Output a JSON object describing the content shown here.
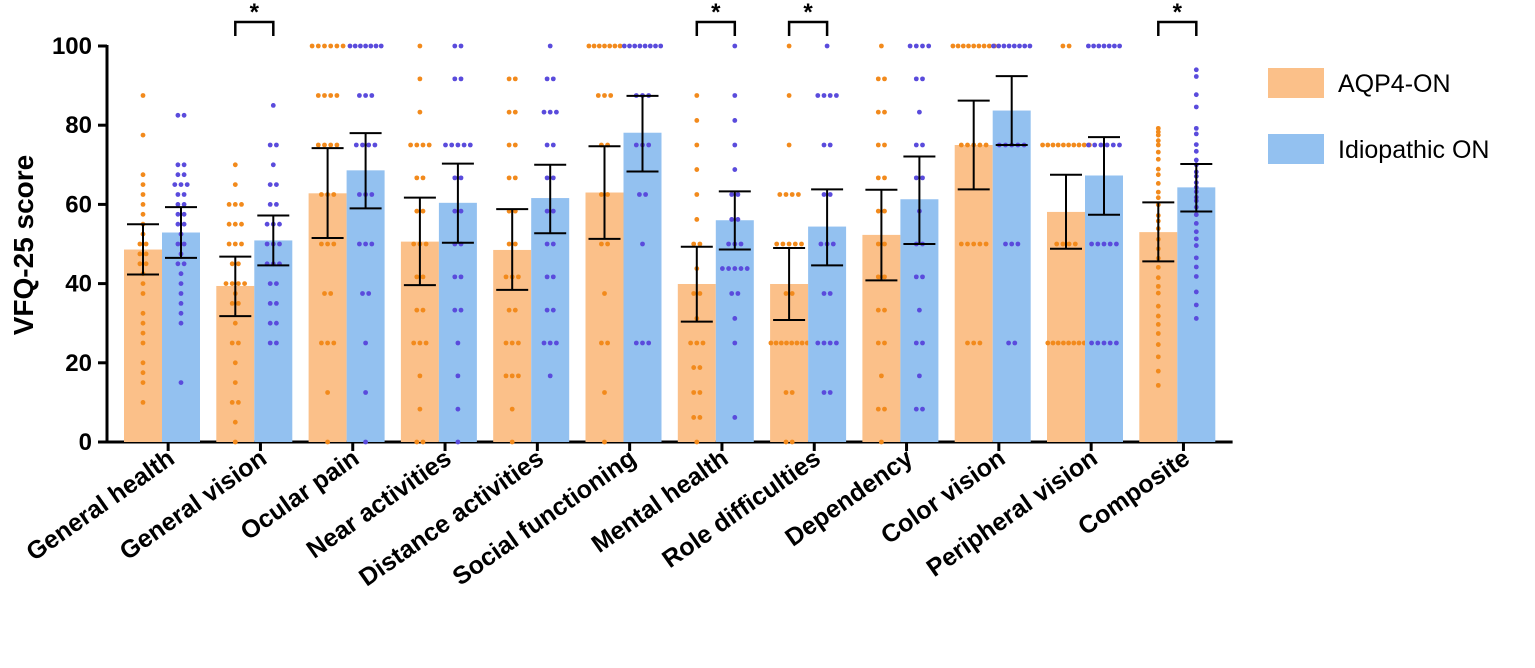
{
  "chart_data": {
    "type": "bar",
    "ylabel": "VFQ-25 score",
    "ylim": [
      0,
      100
    ],
    "yticks": [
      0,
      20,
      40,
      60,
      80,
      100
    ],
    "categories": [
      "General health",
      "General vision",
      "Ocular pain",
      "Near activities",
      "Distance activities",
      "Social functioning",
      "Mental health",
      "Role difficulties",
      "Dependency",
      "Color vision",
      "Peripheral vision",
      "Composite"
    ],
    "series": [
      {
        "name": "AQP4-ON",
        "bar_color": "#fbc089",
        "dot_color": "#f28a1c",
        "values": [
          48.6,
          39.4,
          62.8,
          50.6,
          48.5,
          63.0,
          39.9,
          39.9,
          52.3,
          75.0,
          58.1,
          53.0
        ],
        "err_low": [
          42.3,
          31.8,
          51.5,
          39.6,
          38.4,
          51.3,
          30.4,
          30.8,
          40.8,
          63.8,
          48.8,
          45.6
        ],
        "err_high": [
          55.0,
          46.8,
          74.2,
          61.7,
          58.8,
          74.7,
          49.3,
          49.0,
          63.7,
          86.2,
          67.5,
          60.5
        ],
        "points": [
          [
            87.5,
            77.5,
            67.5,
            65,
            62.5,
            60,
            57.5,
            55,
            52.5,
            50,
            50,
            47.5,
            47.5,
            45,
            45,
            42.5,
            40,
            37.5,
            32.5,
            30,
            27.5,
            25,
            20,
            17.5,
            15,
            10
          ],
          [
            70,
            65,
            60,
            60,
            60,
            55,
            55,
            55,
            50,
            50,
            50,
            45,
            45,
            40,
            40,
            40,
            40,
            37.5,
            35,
            35,
            30,
            25,
            25,
            20,
            15,
            10,
            10,
            5,
            0
          ],
          [
            100,
            100,
            100,
            100,
            100,
            100,
            87.5,
            87.5,
            87.5,
            87.5,
            75,
            75,
            75,
            75,
            62.5,
            62.5,
            62.5,
            50,
            50,
            50,
            37.5,
            37.5,
            25,
            25,
            25,
            12.5,
            0
          ],
          [
            100,
            91.7,
            83.3,
            75,
            75,
            75,
            75,
            66.7,
            66.7,
            58.3,
            58.3,
            50,
            50,
            50,
            41.7,
            41.7,
            33.3,
            33.3,
            25,
            25,
            25,
            16.7,
            8.3,
            0,
            0
          ],
          [
            91.7,
            91.7,
            83.3,
            83.3,
            75,
            75,
            66.7,
            66.7,
            58.3,
            58.3,
            50,
            50,
            41.7,
            41.7,
            41.7,
            33.3,
            33.3,
            25,
            25,
            25,
            16.7,
            16.7,
            16.7,
            8.3,
            0
          ],
          [
            100,
            100,
            100,
            100,
            100,
            100,
            100,
            87.5,
            87.5,
            87.5,
            75,
            75,
            62.5,
            62.5,
            50,
            50,
            37.5,
            25,
            25,
            12.5,
            0
          ],
          [
            87.5,
            81.2,
            75,
            68.8,
            62.5,
            56.2,
            50,
            50,
            43.8,
            37.5,
            37.5,
            31.2,
            25,
            25,
            25,
            18.8,
            18.8,
            12.5,
            12.5,
            6.2,
            6.2,
            0
          ],
          [
            100,
            87.5,
            75,
            62.5,
            62.5,
            62.5,
            62.5,
            50,
            50,
            50,
            50,
            50,
            37.5,
            37.5,
            25,
            25,
            25,
            25,
            25,
            25,
            25,
            25,
            12.5,
            12.5,
            0,
            0
          ],
          [
            100,
            91.7,
            91.7,
            83.3,
            83.3,
            75,
            75,
            66.7,
            66.7,
            58.3,
            58.3,
            50,
            50,
            41.7,
            41.7,
            33.3,
            33.3,
            25,
            25,
            16.7,
            8.3,
            8.3,
            0
          ],
          [
            100,
            100,
            100,
            100,
            100,
            100,
            100,
            100,
            100,
            75,
            75,
            75,
            75,
            75,
            50,
            50,
            50,
            50,
            50,
            25,
            25,
            25
          ],
          [
            100,
            100,
            75,
            75,
            75,
            75,
            75,
            75,
            75,
            75,
            75,
            75,
            50,
            50,
            50,
            50,
            25,
            25,
            25,
            25,
            25,
            25,
            25,
            25
          ],
          [
            79.2,
            78.3,
            77.5,
            76.1,
            75,
            73.2,
            71.4,
            68.9,
            67.5,
            65.3,
            63.1,
            61.7,
            59.9,
            57.2,
            55.8,
            53.9,
            51.2,
            48.8,
            46.4,
            44.1,
            41.5,
            39.3,
            37.6,
            34.3,
            31.8,
            29.7,
            27.4,
            24.6,
            21.5,
            17.9,
            14.3
          ]
        ]
      },
      {
        "name": "Idiopathic ON",
        "bar_color": "#93c1f0",
        "dot_color": "#5a4bdc",
        "values": [
          52.9,
          50.9,
          68.6,
          60.4,
          61.6,
          78.1,
          56.0,
          54.4,
          61.3,
          83.7,
          67.3,
          64.3
        ],
        "err_low": [
          46.5,
          44.6,
          59.0,
          50.3,
          52.7,
          68.3,
          48.6,
          44.6,
          50.0,
          75.0,
          57.4,
          58.2
        ],
        "err_high": [
          59.3,
          57.2,
          78.0,
          70.3,
          70.0,
          87.4,
          63.3,
          63.8,
          72.1,
          92.4,
          77.0,
          70.2
        ],
        "points": [
          [
            82.5,
            82.5,
            70,
            70,
            67.5,
            67.5,
            65,
            65,
            65,
            62.5,
            62.5,
            60,
            60,
            57.5,
            57.5,
            55,
            55,
            52.5,
            50,
            50,
            47.5,
            45,
            45,
            42.5,
            40,
            37.5,
            35,
            32.5,
            30,
            15
          ],
          [
            85,
            75,
            75,
            70,
            65,
            65,
            60,
            60,
            55,
            55,
            55,
            50,
            50,
            50,
            45,
            45,
            45,
            40,
            40,
            35,
            35,
            30,
            30,
            25,
            25
          ],
          [
            100,
            100,
            100,
            100,
            100,
            100,
            100,
            87.5,
            87.5,
            87.5,
            75,
            75,
            75,
            75,
            62.5,
            62.5,
            62.5,
            50,
            50,
            50,
            37.5,
            37.5,
            25,
            12.5,
            0
          ],
          [
            100,
            100,
            91.7,
            91.7,
            75,
            75,
            75,
            75,
            75,
            66.7,
            66.7,
            58.3,
            58.3,
            50,
            50,
            41.7,
            41.7,
            33.3,
            33.3,
            25,
            16.7,
            8.3,
            0
          ],
          [
            100,
            91.7,
            91.7,
            83.3,
            83.3,
            83.3,
            75,
            75,
            66.7,
            66.7,
            58.3,
            58.3,
            50,
            50,
            41.7,
            41.7,
            33.3,
            33.3,
            25,
            25,
            25,
            16.7
          ],
          [
            100,
            100,
            100,
            100,
            100,
            100,
            100,
            100,
            87.5,
            87.5,
            87.5,
            75,
            75,
            75,
            62.5,
            62.5,
            50,
            25,
            25,
            25
          ],
          [
            100,
            87.5,
            81.2,
            75,
            68.8,
            62.5,
            62.5,
            56.2,
            56.2,
            50,
            50,
            50,
            43.8,
            43.8,
            43.8,
            43.8,
            43.8,
            37.5,
            37.5,
            31.2,
            25,
            6.2
          ],
          [
            100,
            87.5,
            87.5,
            87.5,
            87.5,
            75,
            75,
            62.5,
            62.5,
            50,
            50,
            50,
            37.5,
            37.5,
            25,
            25,
            25,
            25,
            12.5,
            12.5
          ],
          [
            100,
            100,
            100,
            100,
            91.7,
            91.7,
            83.3,
            75,
            75,
            66.7,
            66.7,
            58.3,
            50,
            50,
            41.7,
            41.7,
            33.3,
            25,
            25,
            16.7,
            8.3,
            8.3
          ],
          [
            100,
            100,
            100,
            100,
            100,
            100,
            100,
            100,
            75,
            75,
            75,
            75,
            75,
            50,
            50,
            50,
            25,
            25
          ],
          [
            100,
            100,
            100,
            100,
            100,
            100,
            100,
            75,
            75,
            75,
            75,
            75,
            75,
            50,
            50,
            50,
            50,
            50,
            25,
            25,
            25,
            25,
            25
          ],
          [
            94,
            92.3,
            87.7,
            84.6,
            79.2,
            77.8,
            75.1,
            73.4,
            71.2,
            70,
            68.2,
            67.1,
            65.5,
            64.3,
            63.2,
            61.8,
            60.9,
            59.3,
            57.4,
            55.2,
            53.1,
            51.3,
            49.6,
            46.5,
            44.2,
            41.8,
            37.9,
            34.6,
            31.2
          ]
        ]
      }
    ],
    "significance": [
      {
        "category_index": 1,
        "label": "*"
      },
      {
        "category_index": 6,
        "label": "*"
      },
      {
        "category_index": 7,
        "label": "*"
      },
      {
        "category_index": 11,
        "label": "*"
      }
    ],
    "legend": {
      "position": "right",
      "entries": [
        "AQP4-ON",
        "Idiopathic ON"
      ]
    }
  }
}
